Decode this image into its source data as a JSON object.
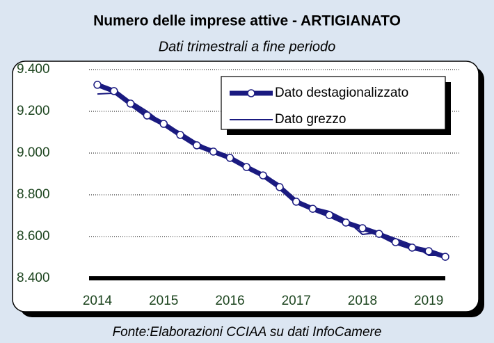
{
  "chart_data": {
    "type": "line",
    "title": "Numero delle imprese attive - ARTIGIANATO",
    "subtitle": "Dati trimestrali a fine periodo",
    "source": "Fonte:Elaborazioni CCIAA su dati InfoCamere",
    "categories": [
      "2014",
      null,
      null,
      null,
      "2015",
      null,
      null,
      null,
      "2016",
      null,
      null,
      null,
      "2017",
      null,
      null,
      null,
      "2018",
      null,
      null,
      null,
      "2019",
      null
    ],
    "series": [
      {
        "name": "Dato destagionalizzato",
        "color": "#1a1a80",
        "values": [
          9327,
          9297,
          9237,
          9180,
          9140,
          9087,
          9037,
          9007,
          8977,
          8933,
          8893,
          8837,
          8767,
          8733,
          8703,
          8667,
          8640,
          8613,
          8573,
          8547,
          8530,
          8503
        ]
      },
      {
        "name": "Dato grezzo",
        "color": "#1a1a80",
        "values": [
          9283,
          9287,
          9250,
          9200,
          9140,
          9100,
          9050,
          9010,
          8970,
          8940,
          8900,
          8850,
          8760,
          8740,
          8720,
          8680,
          8610,
          8620,
          8590,
          8560,
          8510,
          8510
        ]
      }
    ],
    "ylim": [
      8400,
      9400
    ],
    "yticks": [
      {
        "value": 8400,
        "label": "8.400"
      },
      {
        "value": 8600,
        "label": "8.600"
      },
      {
        "value": 8800,
        "label": "8.800"
      },
      {
        "value": 9000,
        "label": "9.000"
      },
      {
        "value": 9200,
        "label": "9.200"
      },
      {
        "value": 9400,
        "label": "9.400"
      }
    ],
    "grid": true
  }
}
